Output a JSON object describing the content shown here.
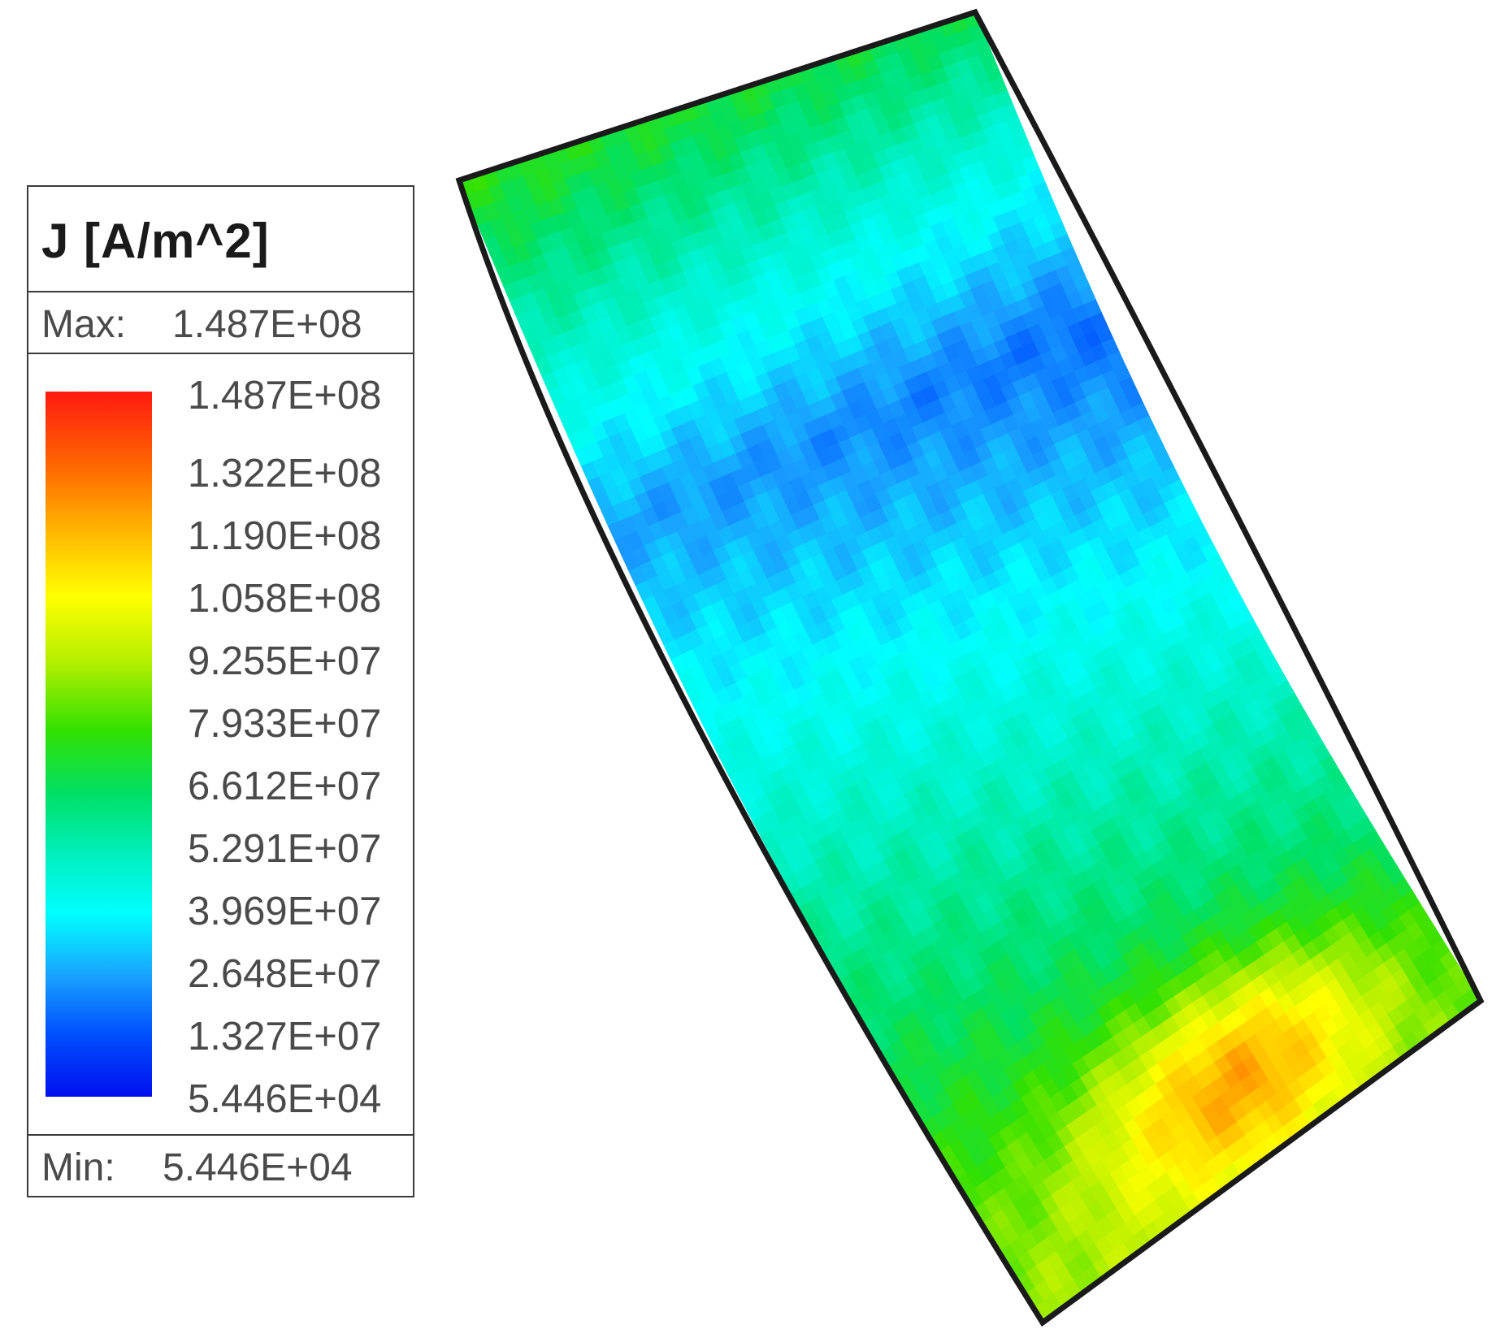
{
  "legend": {
    "title": "J [A/m^2]",
    "max_label": "Max:",
    "max_value": "1.487E+08",
    "min_label": "Min:",
    "min_value": "5.446E+04",
    "ticks": [
      "1.487E+08",
      "1.322E+08",
      "1.190E+08",
      "1.058E+08",
      "9.255E+07",
      "7.933E+07",
      "6.612E+07",
      "5.291E+07",
      "3.969E+07",
      "2.648E+07",
      "1.327E+07",
      "5.446E+04"
    ]
  },
  "colormap": [
    "#0010ee",
    "#0050ff",
    "#19a0ff",
    "#00ffff",
    "#00f0c0",
    "#00e066",
    "#33e000",
    "#b8f000",
    "#ffff00",
    "#ffc000",
    "#ff6a00",
    "#ff1a10"
  ],
  "field": {
    "min": 54460,
    "max": 148700000
  }
}
